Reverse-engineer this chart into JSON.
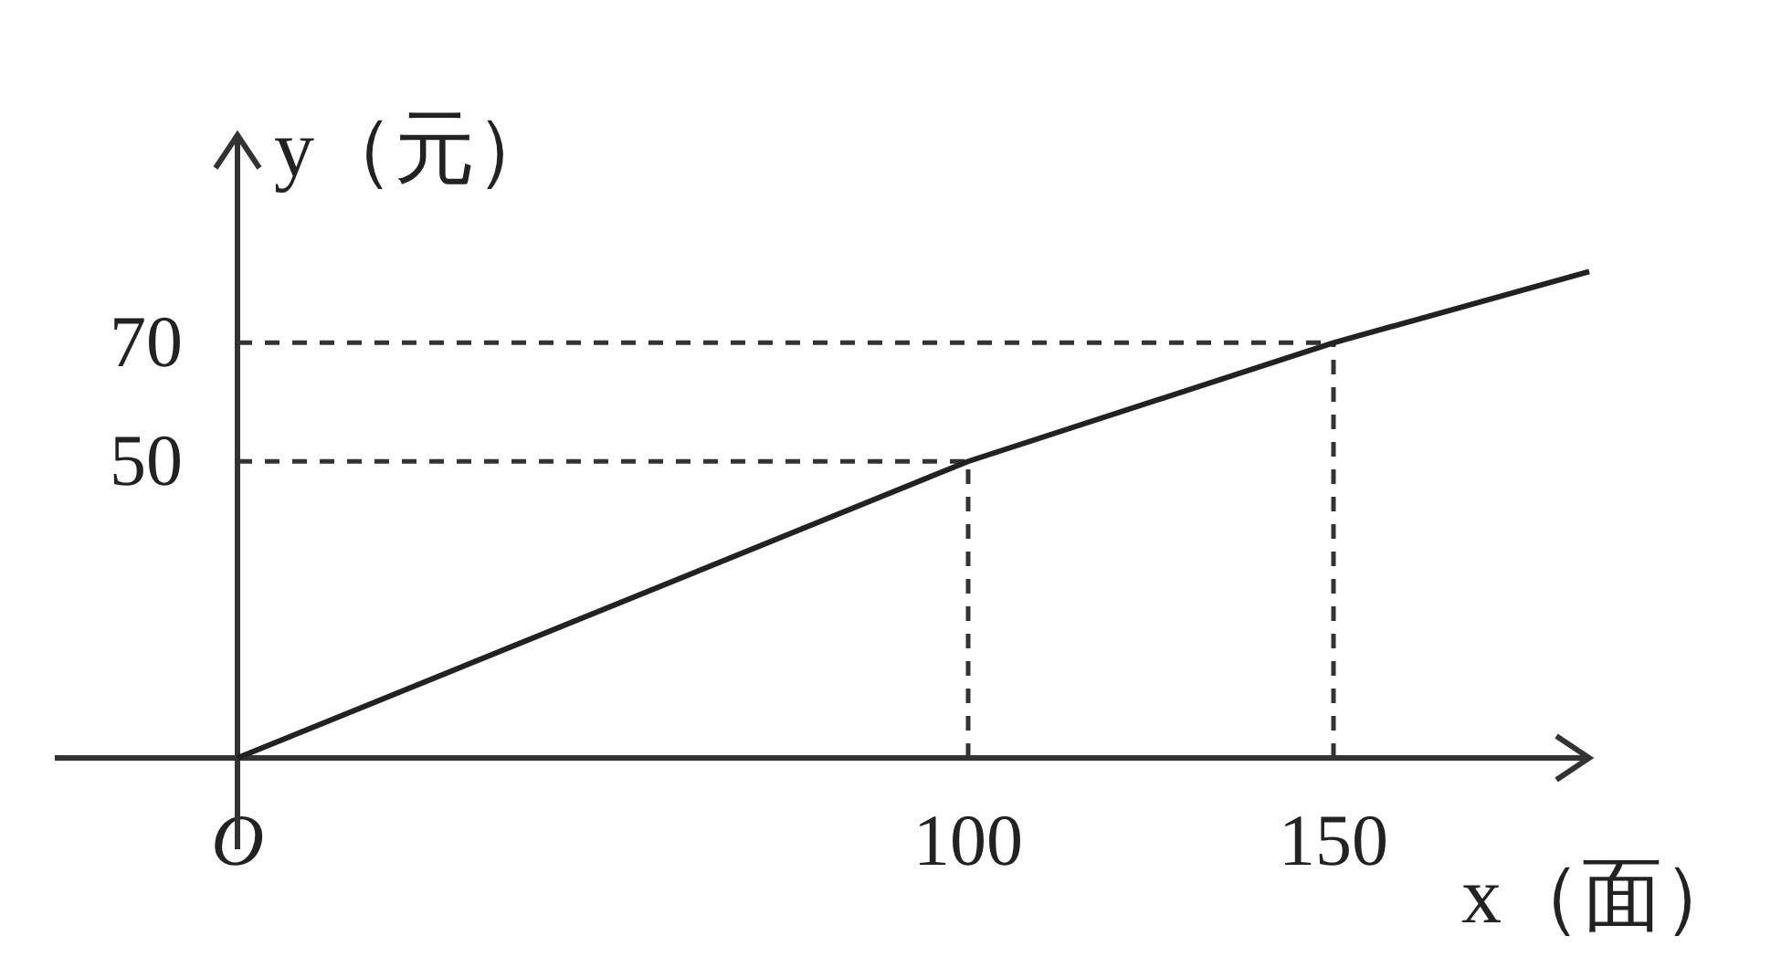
{
  "chart_data": {
    "type": "line",
    "xlabel": "x（面）",
    "ylabel": "y（元）",
    "x": [
      0,
      100,
      150,
      185
    ],
    "values": [
      0,
      50,
      70,
      82
    ],
    "color": "#222222",
    "xlim": [
      0,
      185
    ],
    "ylim": [
      0,
      105
    ],
    "xticks": [
      {
        "value": 0,
        "label": "O"
      },
      100,
      150
    ],
    "yticks": [
      50,
      70
    ],
    "ref_lines": [
      {
        "axis": "x",
        "value": 100,
        "line_style": "dashed"
      },
      {
        "axis": "x",
        "value": 150,
        "line_style": "dashed"
      },
      {
        "axis": "y",
        "value": 50,
        "line_style": "dashed"
      },
      {
        "axis": "y",
        "value": 70,
        "line_style": "dashed"
      }
    ]
  }
}
